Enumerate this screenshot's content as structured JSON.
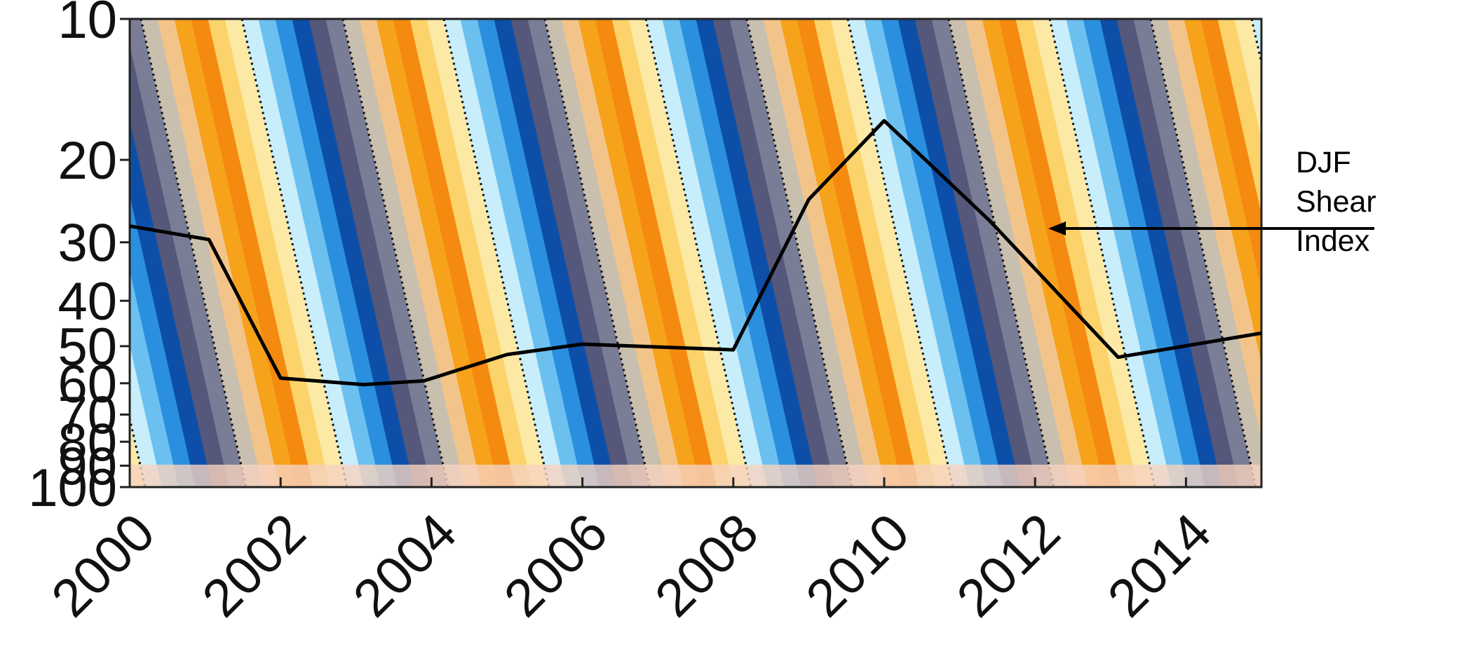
{
  "chart_data": {
    "type": "line",
    "x": [
      2000,
      2001.05,
      2002.0,
      2003.1,
      2003.9,
      2005.0,
      2006.0,
      2008.0,
      2009.0,
      2010.0,
      2011.4,
      2013.1,
      2015.0
    ],
    "series": [
      {
        "name": "DJF Shear Index",
        "color": "#000000",
        "values": [
          27.7,
          29.6,
          58.5,
          60.4,
          59.3,
          52.1,
          49.5,
          50.9,
          24.3,
          16.5,
          27.0,
          52.8,
          46.9
        ]
      }
    ],
    "xlim": [
      2000,
      2015
    ],
    "xticks": [
      2000,
      2002,
      2004,
      2006,
      2008,
      2010,
      2012,
      2014
    ],
    "ylim": [
      100,
      10
    ],
    "yticks": [
      10,
      20,
      30,
      40,
      50,
      60,
      70,
      80,
      90,
      100
    ],
    "ylog": true,
    "annotation": "DJF Shear Index"
  }
}
